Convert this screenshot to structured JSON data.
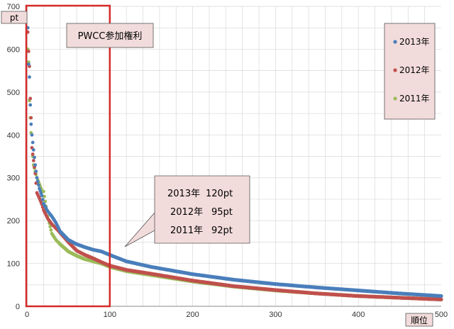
{
  "chart_data": {
    "type": "scatter",
    "ylabel": "pt",
    "xlabel": "順位",
    "xlim": [
      0,
      500
    ],
    "ylim": [
      0,
      700
    ],
    "x_ticks": [
      "0",
      "100",
      "200",
      "300",
      "400",
      "500"
    ],
    "y_ticks": [
      "0",
      "100",
      "200",
      "300",
      "400",
      "500",
      "600",
      "700"
    ],
    "grid": true,
    "legend_position": "top-right",
    "highlight_box": {
      "label": "PWCC参加権利",
      "x_range": [
        0,
        100
      ],
      "color": "#d62a2a"
    },
    "callout": {
      "lines": [
        {
          "year": "2013年",
          "value": "120pt"
        },
        {
          "year": "2012年",
          "value": "95pt"
        },
        {
          "year": "2011年",
          "value": "92pt"
        }
      ],
      "points_to_x": 100
    },
    "series": [
      {
        "name": "2013年",
        "color": "#4a7ebb",
        "curve": [
          [
            1,
            650
          ],
          [
            2,
            565
          ],
          [
            3,
            535
          ],
          [
            4,
            470
          ],
          [
            5,
            425
          ],
          [
            6,
            400
          ],
          [
            8,
            365
          ],
          [
            10,
            330
          ],
          [
            12,
            300
          ],
          [
            15,
            275
          ],
          [
            18,
            258
          ],
          [
            20,
            240
          ],
          [
            25,
            222
          ],
          [
            30,
            210
          ],
          [
            35,
            195
          ],
          [
            40,
            175
          ],
          [
            50,
            155
          ],
          [
            60,
            145
          ],
          [
            70,
            138
          ],
          [
            80,
            132
          ],
          [
            90,
            128
          ],
          [
            100,
            120
          ],
          [
            120,
            105
          ],
          [
            150,
            92
          ],
          [
            200,
            75
          ],
          [
            250,
            62
          ],
          [
            300,
            52
          ],
          [
            350,
            44
          ],
          [
            400,
            37
          ],
          [
            450,
            30
          ],
          [
            500,
            24
          ]
        ]
      },
      {
        "name": "2012年",
        "color": "#c0504d",
        "curve": [
          [
            1,
            640
          ],
          [
            2,
            595
          ],
          [
            3,
            560
          ],
          [
            4,
            485
          ],
          [
            5,
            440
          ],
          [
            6,
            370
          ],
          [
            8,
            340
          ],
          [
            10,
            310
          ],
          [
            12,
            265
          ],
          [
            15,
            252
          ],
          [
            18,
            238
          ],
          [
            20,
            225
          ],
          [
            25,
            205
          ],
          [
            30,
            192
          ],
          [
            35,
            182
          ],
          [
            40,
            172
          ],
          [
            50,
            150
          ],
          [
            60,
            130
          ],
          [
            70,
            120
          ],
          [
            80,
            112
          ],
          [
            90,
            103
          ],
          [
            100,
            95
          ],
          [
            120,
            85
          ],
          [
            150,
            76
          ],
          [
            200,
            60
          ],
          [
            250,
            47
          ],
          [
            300,
            38
          ],
          [
            350,
            30
          ],
          [
            400,
            24
          ],
          [
            450,
            20
          ],
          [
            500,
            16
          ]
        ]
      },
      {
        "name": "2011年",
        "color": "#9bbb59",
        "curve": [
          [
            1,
            600
          ],
          [
            2,
            570
          ],
          [
            3,
            480
          ],
          [
            4,
            440
          ],
          [
            5,
            405
          ],
          [
            6,
            370
          ],
          [
            8,
            330
          ],
          [
            10,
            315
          ],
          [
            12,
            300
          ],
          [
            15,
            285
          ],
          [
            18,
            270
          ],
          [
            20,
            268
          ],
          [
            25,
            210
          ],
          [
            30,
            170
          ],
          [
            35,
            155
          ],
          [
            40,
            145
          ],
          [
            50,
            128
          ],
          [
            60,
            118
          ],
          [
            70,
            110
          ],
          [
            80,
            105
          ],
          [
            90,
            100
          ],
          [
            100,
            92
          ],
          [
            120,
            82
          ],
          [
            150,
            73
          ],
          [
            200,
            58
          ],
          [
            250,
            46
          ],
          [
            300,
            37
          ],
          [
            350,
            30
          ],
          [
            400,
            24
          ],
          [
            450,
            20
          ],
          [
            500,
            16
          ]
        ]
      }
    ]
  }
}
